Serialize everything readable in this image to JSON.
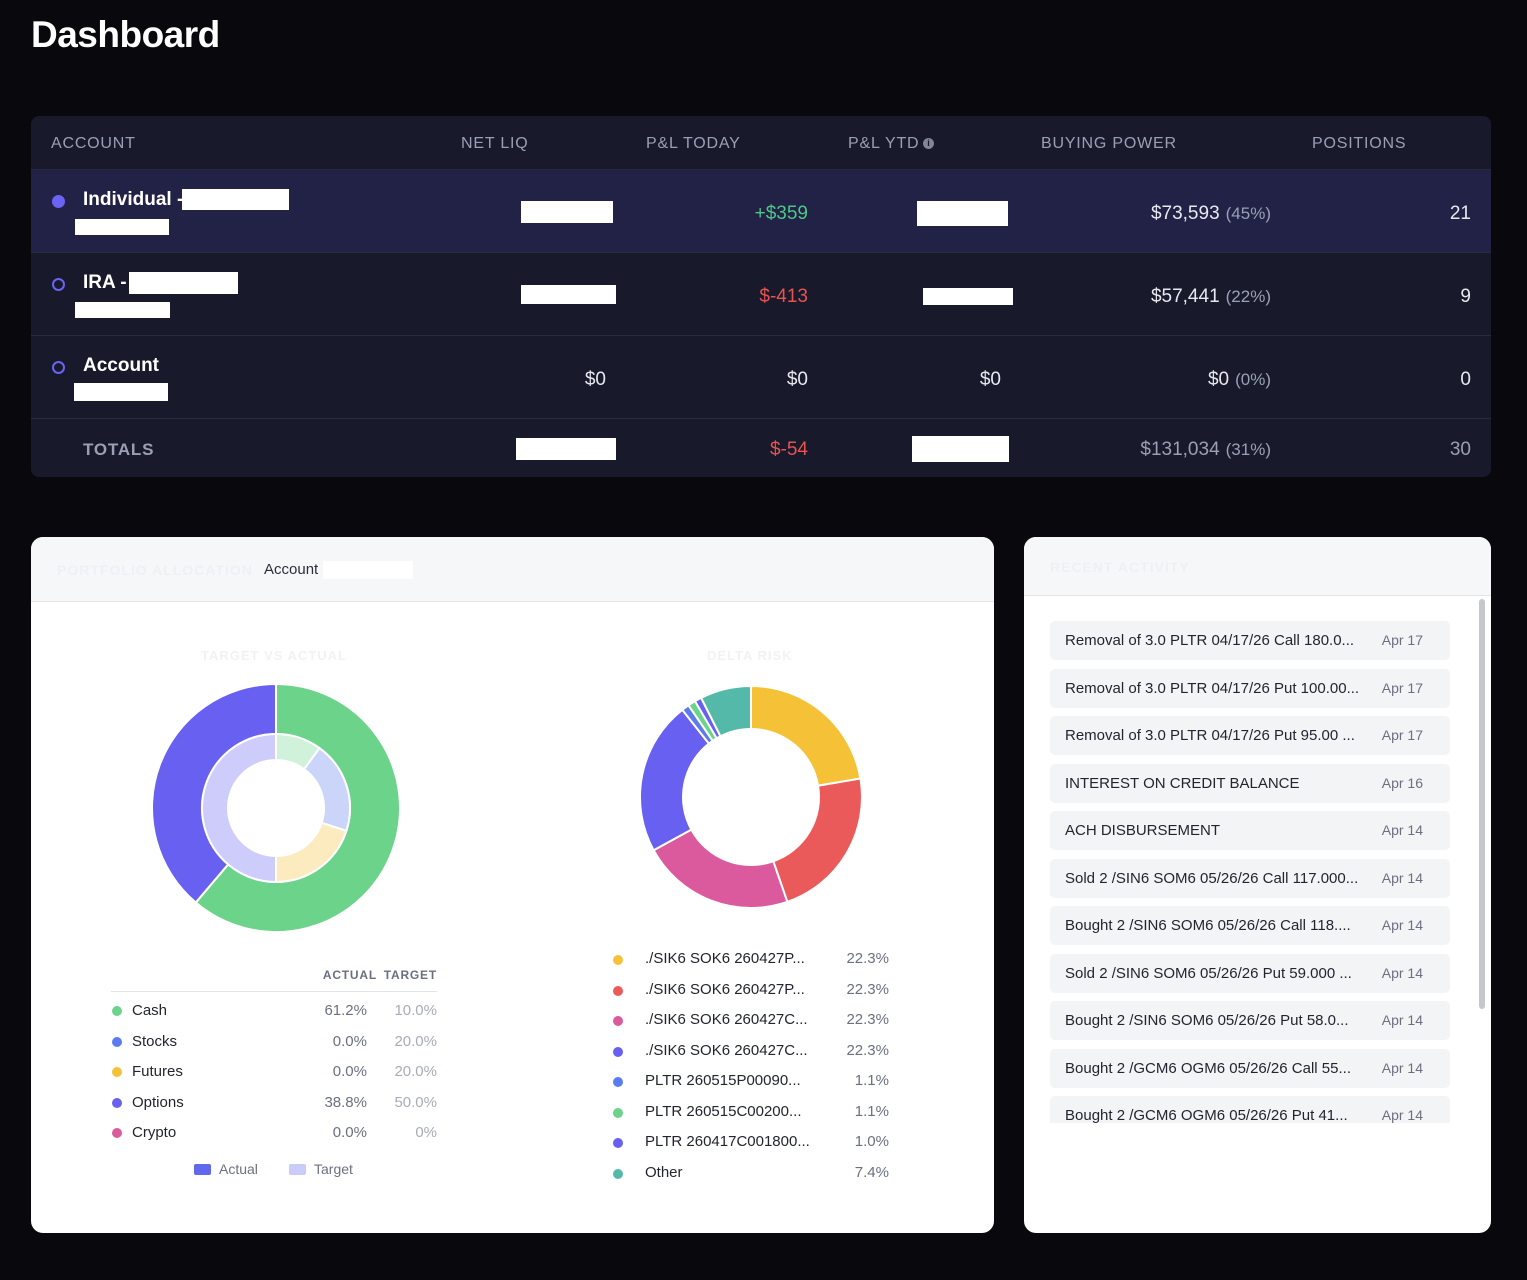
{
  "page": {
    "title": "Dashboard"
  },
  "accounts_table": {
    "columns": [
      "ACCOUNT",
      "NET LIQ",
      "P&L TODAY",
      "P&L YTD",
      "BUYING POWER",
      "POSITIONS"
    ],
    "info_icon": "info-icon",
    "rows": [
      {
        "name": "Individual -",
        "net_liq": "",
        "pl_today": "+$359",
        "pl_ytd": "",
        "buying_power": "$73,593",
        "buying_power_pct": "(45%)",
        "positions": "21",
        "selected": true
      },
      {
        "name": "IRA -",
        "net_liq": "",
        "pl_today": "$-413",
        "pl_ytd": "",
        "buying_power": "$57,441",
        "buying_power_pct": "(22%)",
        "positions": "9",
        "selected": false
      },
      {
        "name": "Account",
        "net_liq": "$0",
        "pl_today": "$0",
        "pl_ytd": "$0",
        "buying_power": "$0",
        "buying_power_pct": "(0%)",
        "positions": "0",
        "selected": false
      }
    ],
    "totals": {
      "label": "TOTALS",
      "pl_today": "$-54",
      "buying_power": "$131,034",
      "buying_power_pct": "(31%)",
      "positions": "30"
    }
  },
  "allocation": {
    "title": "PORTFOLIO ALLOCATION",
    "account_selector": "Account",
    "target_vs_actual_title": "TARGET VS ACTUAL",
    "delta_risk_title": "DELTA RISK",
    "legend_headers": {
      "actual": "ACTUAL",
      "target": "TARGET"
    },
    "rows": [
      {
        "label": "Cash",
        "actual": "61.2%",
        "target": "10.0%",
        "color": "#6cd38a"
      },
      {
        "label": "Stocks",
        "actual": "0.0%",
        "target": "20.0%",
        "color": "#5b7cf0"
      },
      {
        "label": "Futures",
        "actual": "0.0%",
        "target": "20.0%",
        "color": "#f5c237"
      },
      {
        "label": "Options",
        "actual": "38.8%",
        "target": "50.0%",
        "color": "#6760f0"
      },
      {
        "label": "Crypto",
        "actual": "0.0%",
        "target": "0%",
        "color": "#db5a9d"
      }
    ],
    "mini_legend": {
      "actual": "Actual",
      "target": "Target"
    }
  },
  "delta_risk": {
    "items": [
      {
        "label": "./SIK6 SOK6 260427P...",
        "value": "22.3%",
        "color": "#f5c237"
      },
      {
        "label": "./SIK6 SOK6 260427P...",
        "value": "22.3%",
        "color": "#eb5a5a"
      },
      {
        "label": "./SIK6 SOK6 260427C...",
        "value": "22.3%",
        "color": "#db5a9d"
      },
      {
        "label": "./SIK6 SOK6 260427C...",
        "value": "22.3%",
        "color": "#6760f0"
      },
      {
        "label": "PLTR 260515P00090...",
        "value": "1.1%",
        "color": "#5b7cf0"
      },
      {
        "label": "PLTR 260515C00200...",
        "value": "1.1%",
        "color": "#6cd38a"
      },
      {
        "label": "PLTR 260417C001800...",
        "value": "1.0%",
        "color": "#6760f0"
      },
      {
        "label": "Other",
        "value": "7.4%",
        "color": "#54b9a8"
      }
    ]
  },
  "chart_data": [
    {
      "type": "pie",
      "title": "TARGET VS ACTUAL",
      "series": [
        {
          "name": "Actual",
          "categories": [
            "Cash",
            "Stocks",
            "Futures",
            "Options",
            "Crypto"
          ],
          "values": [
            61.2,
            0.0,
            0.0,
            38.8,
            0.0
          ]
        },
        {
          "name": "Target",
          "categories": [
            "Cash",
            "Stocks",
            "Futures",
            "Options",
            "Crypto"
          ],
          "values": [
            10.0,
            20.0,
            20.0,
            50.0,
            0
          ]
        }
      ],
      "colors": {
        "Cash": "#6cd38a",
        "Stocks": "#5b7cf0",
        "Futures": "#f5c237",
        "Options": "#6760f0",
        "Crypto": "#db5a9d"
      }
    },
    {
      "type": "pie",
      "title": "DELTA RISK",
      "categories": [
        "./SIK6 SOK6 260427P...",
        "./SIK6 SOK6 260427P...",
        "./SIK6 SOK6 260427C...",
        "./SIK6 SOK6 260427C...",
        "PLTR 260515P00090...",
        "PLTR 260515C00200...",
        "PLTR 260417C001800...",
        "Other"
      ],
      "values": [
        22.3,
        22.3,
        22.3,
        22.3,
        1.1,
        1.1,
        1.0,
        7.4
      ]
    }
  ],
  "activity": {
    "title": "RECENT ACTIVITY",
    "items": [
      {
        "text": "Removal of 3.0 PLTR 04/17/26 Call 180.0...",
        "date": "Apr 17"
      },
      {
        "text": "Removal of 3.0 PLTR 04/17/26 Put 100.00...",
        "date": "Apr 17"
      },
      {
        "text": "Removal of 3.0 PLTR 04/17/26 Put 95.00 ...",
        "date": "Apr 17"
      },
      {
        "text": "INTEREST ON CREDIT BALANCE",
        "date": "Apr 16"
      },
      {
        "text": "ACH DISBURSEMENT",
        "date": "Apr 14"
      },
      {
        "text": "Sold 2 /SIN6 SOM6 05/26/26 Call 117.000...",
        "date": "Apr 14"
      },
      {
        "text": "Bought 2 /SIN6 SOM6 05/26/26 Call 118....",
        "date": "Apr 14"
      },
      {
        "text": "Sold 2 /SIN6 SOM6 05/26/26 Put 59.000 ...",
        "date": "Apr 14"
      },
      {
        "text": "Bought 2 /SIN6 SOM6 05/26/26 Put 58.0...",
        "date": "Apr 14"
      },
      {
        "text": "Bought 2 /GCM6 OGM6 05/26/26 Call 55...",
        "date": "Apr 14"
      },
      {
        "text": "Bought 2 /GCM6 OGM6 05/26/26 Put 41...",
        "date": "Apr 14"
      }
    ]
  }
}
